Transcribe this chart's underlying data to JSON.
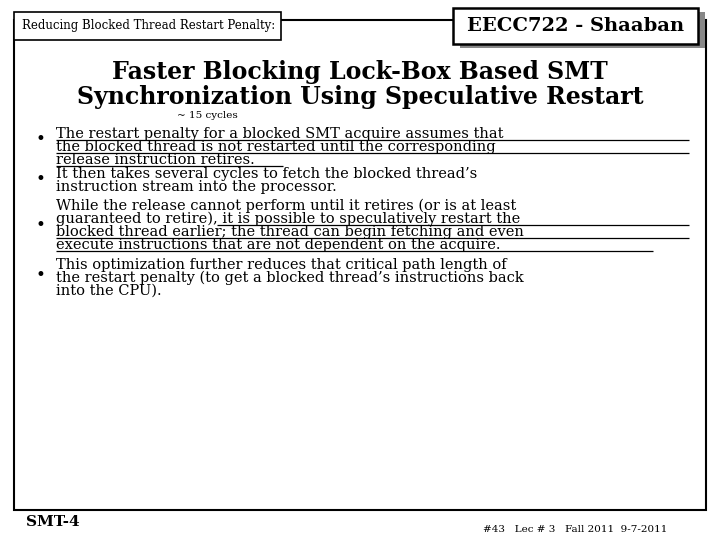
{
  "header_label": "Reducing Blocked Thread Restart Penalty:",
  "title_line1": "Faster Blocking Lock-Box Based SMT",
  "title_line2": "Synchronization Using Speculative Restart",
  "annotation": "~ 15 cycles",
  "b1_l1": "The restart penalty for a blocked SMT acquire assumes that",
  "b1_l2": "the blocked thread is not restarted until the corresponding",
  "b1_l3": "release instruction retires.",
  "b2_l1": "It then takes several cycles to fetch the blocked thread’s",
  "b2_l2": "instruction stream into the processor.",
  "b3_l1": "While the release cannot perform until it retires (or is at least",
  "b3_l2": "guaranteed to retire), it is possible to speculatively restart the",
  "b3_l3": "blocked thread earlier; the thread can begin fetching and even",
  "b3_l4": "execute instructions that are not dependent on the acquire.",
  "b4_l1": "This optimization further reduces that critical path length of",
  "b4_l2": "the restart penalty (to get a blocked thread’s instructions back",
  "b4_l3": "into the CPU).",
  "footer_left": "SMT-4",
  "footer_box": "EECC722 - Shaaban",
  "footer_sub": "#43   Lec # 3   Fall 2011  9-7-2011",
  "bg_color": "#ffffff",
  "border_color": "#000000",
  "text_color": "#000000",
  "gray_color": "#888888"
}
